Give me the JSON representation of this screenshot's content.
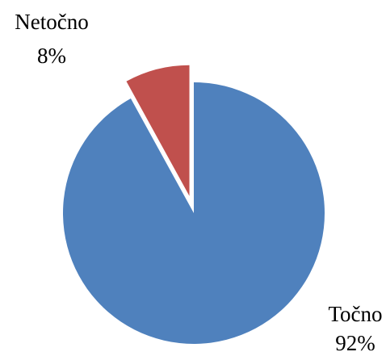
{
  "chart_data": {
    "type": "pie",
    "slices": [
      {
        "label": "Točno",
        "value": 92,
        "display": "92%",
        "color": "#4F81BD",
        "exploded": false
      },
      {
        "label": "Netočno",
        "value": 8,
        "display": "8%",
        "color": "#C0504D",
        "exploded": true
      }
    ],
    "start_angle_deg": 90,
    "direction": "clockwise",
    "legend": "none"
  }
}
